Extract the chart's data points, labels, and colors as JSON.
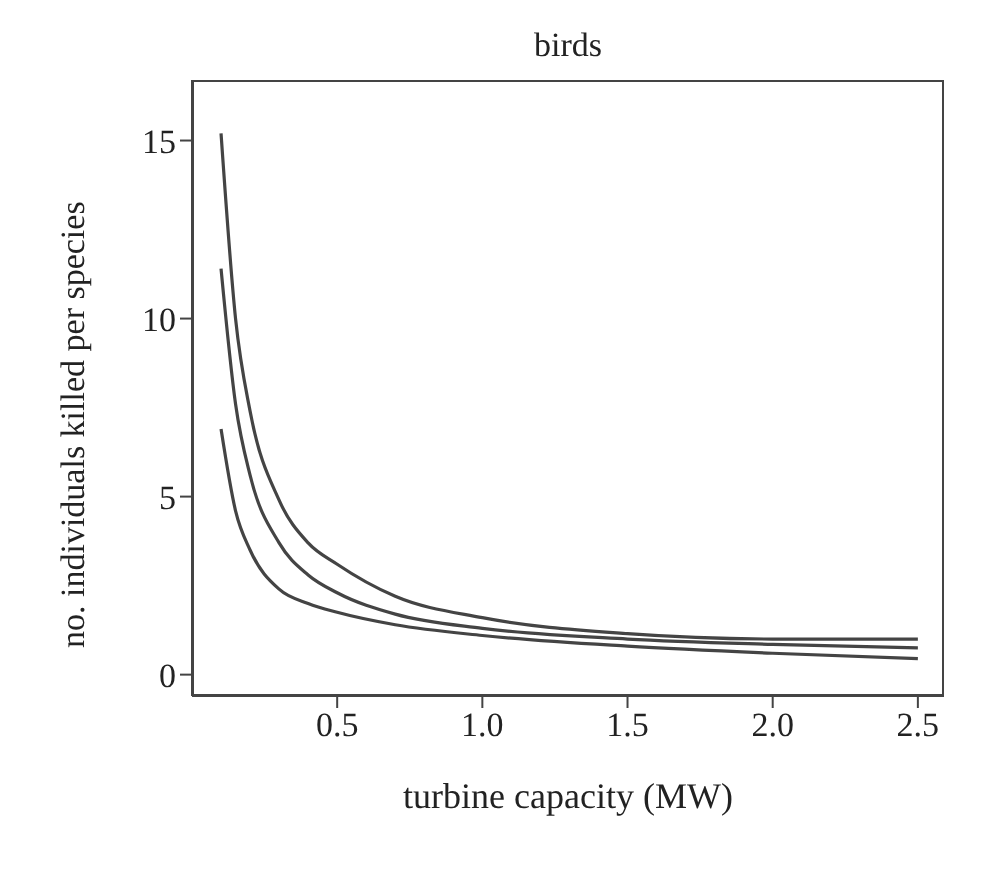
{
  "chart_data": {
    "type": "line",
    "title": "birds",
    "xlabel": "turbine capacity (MW)",
    "ylabel": "no. individuals killed per species",
    "x": [
      0.1,
      0.15,
      0.2,
      0.3,
      0.4,
      0.5,
      0.7,
      1.0,
      1.5,
      2.0,
      2.5
    ],
    "series": [
      {
        "color": "#444444",
        "values": [
          15.2,
          10.0,
          7.4,
          4.9,
          3.7,
          3.1,
          2.2,
          1.6,
          1.15,
          1.0,
          1.0
        ]
      },
      {
        "color": "#444444",
        "values": [
          11.4,
          7.6,
          5.6,
          3.7,
          2.8,
          2.3,
          1.7,
          1.3,
          1.0,
          0.85,
          0.75
        ]
      },
      {
        "color": "#444444",
        "values": [
          6.9,
          4.6,
          3.5,
          2.4,
          2.0,
          1.75,
          1.4,
          1.1,
          0.8,
          0.6,
          0.45
        ]
      }
    ],
    "xlim": [
      0.0,
      2.59
    ],
    "xticks": [
      {
        "value": 0.5,
        "label": "0.5"
      },
      {
        "value": 1.0,
        "label": "1.0"
      },
      {
        "value": 1.5,
        "label": "1.5"
      },
      {
        "value": 2.0,
        "label": "2.0"
      },
      {
        "value": 2.5,
        "label": "2.5"
      }
    ],
    "ylim": [
      -0.6,
      16.7
    ],
    "yticks": [
      0,
      5,
      10,
      15
    ],
    "grid": false,
    "legend": false,
    "marker": "none",
    "line_style": "solid"
  }
}
